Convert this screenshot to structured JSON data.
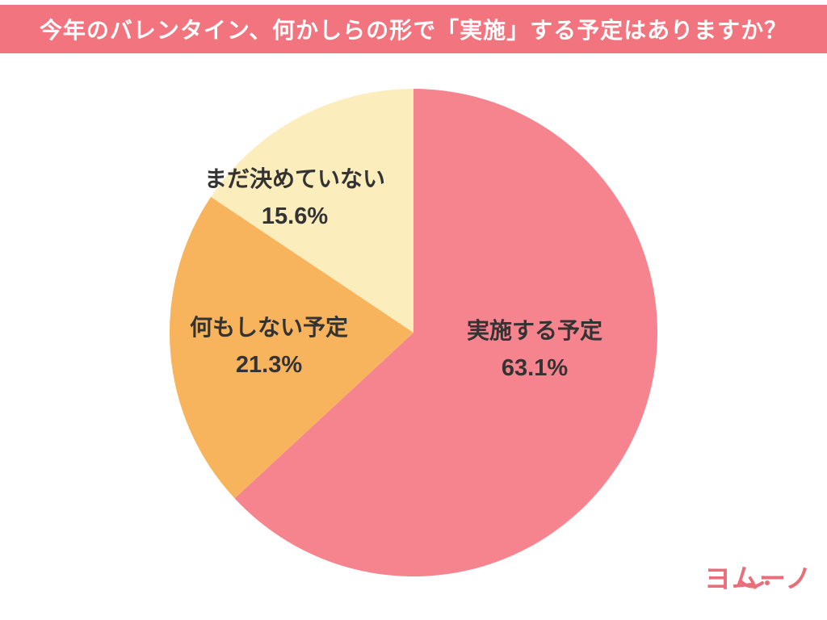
{
  "header": {
    "title": "今年のバレンタイン、何かしらの形で「実施」する予定はありますか？",
    "bg_color": "#f2747e",
    "text_color": "#ffffff"
  },
  "chart_data": {
    "type": "pie",
    "title": "今年のバレンタイン、何かしらの形で「実施」する予定はありますか？",
    "start_angle_deg": -90,
    "direction": "clockwise",
    "total": 100.0,
    "slices": [
      {
        "label": "実施する予定",
        "value": 63.1,
        "pct_label": "63.1%",
        "color": "#f5848e"
      },
      {
        "label": "何もしない予定",
        "value": 21.3,
        "pct_label": "21.3%",
        "color": "#f8b45c"
      },
      {
        "label": "まだ決めていない",
        "value": 15.6,
        "pct_label": "15.6%",
        "color": "#fcedbd"
      }
    ],
    "legend_position": "none",
    "labels_inside": true,
    "label_text_color": "#333333"
  },
  "logo": {
    "text": "ヨムーノ",
    "color": "#e96e79"
  }
}
